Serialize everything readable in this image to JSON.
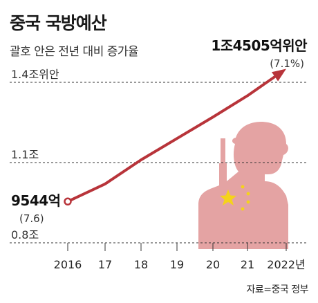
{
  "header": {
    "title": "중국 국방예산",
    "subtitle": "괄호 안은 전년 대비 증가율"
  },
  "source": "자료=중국 정부",
  "colors": {
    "line": "#b8343a",
    "grid": "#333333",
    "soldier": "#e4a3a3",
    "flag_red": "#d5383a",
    "flag_star": "#f5d31a"
  },
  "icons": [
    "soldier-silhouette-icon",
    "china-flag-icon"
  ],
  "chart_data": {
    "type": "line",
    "title": "중국 국방예산",
    "subtitle": "괄호 안은 전년 대비 증가율",
    "x": [
      "2016",
      "17",
      "18",
      "19",
      "20",
      "21",
      "2022년"
    ],
    "series": [
      {
        "values": [
          0.9544,
          1.02,
          1.11,
          1.19,
          1.27,
          1.35,
          1.4505
        ]
      }
    ],
    "y_ticks": [
      {
        "value": 0.8,
        "label": "0.8조"
      },
      {
        "value": 1.1,
        "label": "1.1조"
      },
      {
        "value": 1.4,
        "label": "1.4조위안"
      }
    ],
    "ylim": [
      0.8,
      1.45
    ],
    "grid": "dashed horizontal at 0.8, 1.1, 1.4",
    "annotations": [
      {
        "point": "start",
        "value_label": "9544억",
        "rate_label": "(7.6)"
      },
      {
        "point": "end",
        "value_label": "1조4505억위안",
        "rate_label": "(7.1%)"
      }
    ]
  }
}
